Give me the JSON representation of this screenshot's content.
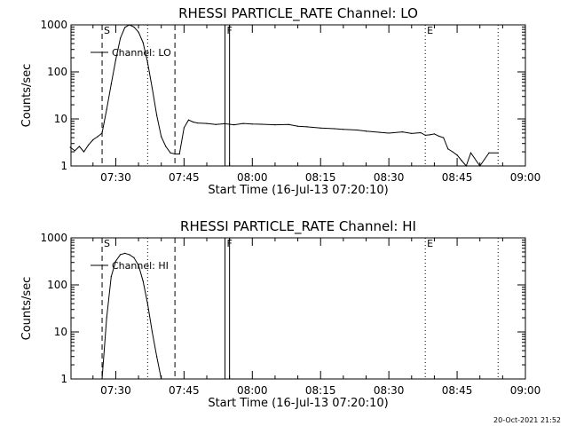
{
  "chart_data": [
    {
      "type": "line",
      "title": "RHESSI PARTICLE_RATE Channel: LO",
      "xlabel": "Start Time (16-Jul-13 07:20:10)",
      "ylabel": "Counts/sec",
      "y_scale": "log",
      "ylim": [
        1,
        1000
      ],
      "y_ticks": [
        "1",
        "10",
        "100",
        "1000"
      ],
      "xlim": [
        "07:20:10",
        "09:00"
      ],
      "x_ticks": [
        "07:30",
        "07:45",
        "08:00",
        "08:15",
        "08:30",
        "08:45",
        "09:00"
      ],
      "legend": {
        "position": "top-left",
        "entries": [
          "Channel: LO"
        ]
      },
      "markers": [
        {
          "label": "S",
          "time": "07:27",
          "style": "dashed"
        },
        {
          "label": "",
          "time": "07:37",
          "style": "dotted"
        },
        {
          "label": "",
          "time": "07:43",
          "style": "dashed"
        },
        {
          "label": "F",
          "time": "07:54",
          "style": "solid"
        },
        {
          "label": "",
          "time": "07:55",
          "style": "solid"
        },
        {
          "label": "E",
          "time": "08:38",
          "style": "dotted"
        },
        {
          "label": "",
          "time": "08:54",
          "style": "dotted"
        }
      ],
      "series": [
        {
          "name": "Channel: LO",
          "x": [
            "07:20",
            "07:21",
            "07:22",
            "07:23",
            "07:24",
            "07:25",
            "07:26",
            "07:27",
            "07:28",
            "07:29",
            "07:30",
            "07:31",
            "07:32",
            "07:33",
            "07:34",
            "07:35",
            "07:36",
            "07:37",
            "07:38",
            "07:39",
            "07:40",
            "07:41",
            "07:42",
            "07:43",
            "07:44",
            "07:45",
            "07:46",
            "07:47",
            "07:48",
            "07:50",
            "07:52",
            "07:54",
            "07:56",
            "07:58",
            "08:00",
            "08:02",
            "08:05",
            "08:08",
            "08:10",
            "08:12",
            "08:15",
            "08:18",
            "08:20",
            "08:23",
            "08:25",
            "08:28",
            "08:30",
            "08:33",
            "08:35",
            "08:37",
            "08:38",
            "08:39",
            "08:40",
            "08:41",
            "08:42",
            "08:43",
            "08:44",
            "08:45",
            "08:46",
            "08:47",
            "08:48",
            "08:50",
            "08:52",
            "08:54"
          ],
          "values": [
            2.5,
            2.1,
            2.6,
            2.0,
            2.8,
            3.6,
            4.2,
            5.0,
            16,
            55,
            180,
            520,
            880,
            1000,
            900,
            700,
            420,
            160,
            45,
            12,
            4.2,
            2.6,
            1.9,
            1.8,
            1.8,
            6.5,
            9.5,
            8.6,
            8.2,
            8.0,
            7.6,
            7.9,
            7.5,
            8.0,
            7.8,
            7.7,
            7.5,
            7.6,
            7.0,
            6.8,
            6.4,
            6.2,
            6.0,
            5.8,
            5.5,
            5.2,
            5.0,
            5.3,
            4.9,
            5.1,
            4.5,
            4.6,
            4.8,
            4.3,
            4.0,
            2.3,
            2.0,
            1.7,
            1.3,
            1.0,
            1.9,
            1.0,
            1.9,
            1.9
          ]
        }
      ]
    },
    {
      "type": "line",
      "title": "RHESSI PARTICLE_RATE Channel: HI",
      "xlabel": "Start Time (16-Jul-13 07:20:10)",
      "ylabel": "Counts/sec",
      "y_scale": "log",
      "ylim": [
        1,
        1000
      ],
      "y_ticks": [
        "1",
        "10",
        "100",
        "1000"
      ],
      "xlim": [
        "07:20:10",
        "09:00"
      ],
      "x_ticks": [
        "07:30",
        "07:45",
        "08:00",
        "08:15",
        "08:30",
        "08:45",
        "09:00"
      ],
      "legend": {
        "position": "top-left",
        "entries": [
          "Channel: HI"
        ]
      },
      "markers": [
        {
          "label": "S",
          "time": "07:27",
          "style": "dashed"
        },
        {
          "label": "",
          "time": "07:37",
          "style": "dotted"
        },
        {
          "label": "",
          "time": "07:43",
          "style": "dashed"
        },
        {
          "label": "F",
          "time": "07:54",
          "style": "solid"
        },
        {
          "label": "",
          "time": "07:55",
          "style": "solid"
        },
        {
          "label": "E",
          "time": "08:38",
          "style": "dotted"
        },
        {
          "label": "",
          "time": "08:54",
          "style": "dotted"
        }
      ],
      "series": [
        {
          "name": "Channel: HI",
          "x": [
            "07:27",
            "07:28",
            "07:29",
            "07:30",
            "07:31",
            "07:32",
            "07:33",
            "07:34",
            "07:35",
            "07:36",
            "07:37",
            "07:38",
            "07:39",
            "07:40"
          ],
          "values": [
            1.0,
            20,
            150,
            320,
            440,
            470,
            440,
            380,
            260,
            120,
            40,
            10,
            3.0,
            1.0
          ]
        }
      ]
    }
  ],
  "footer": {
    "timestamp": "20-Oct-2021 21:52"
  }
}
